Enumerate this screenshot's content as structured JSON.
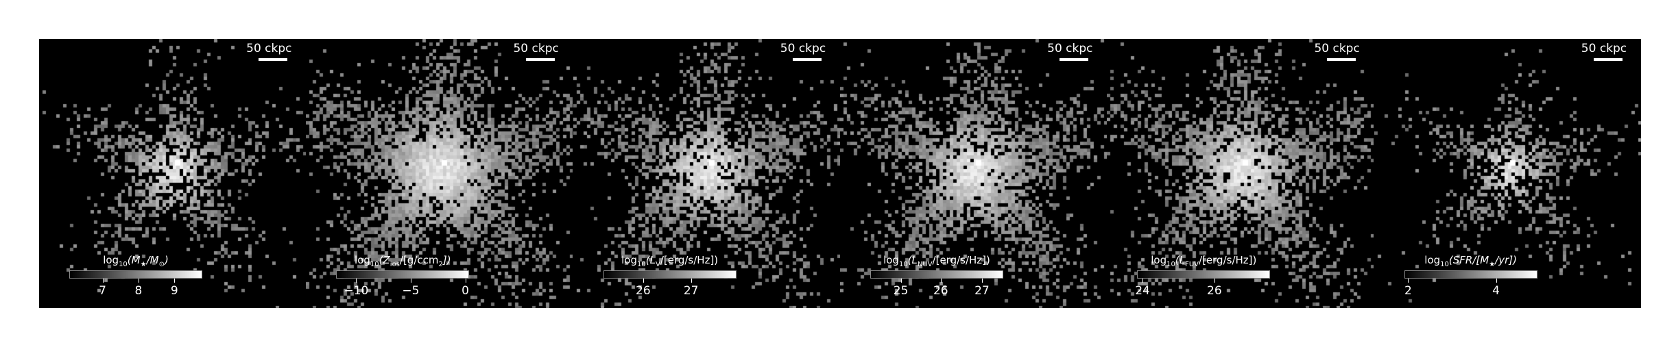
{
  "panels": [
    {
      "scalebar": "50 ckpc",
      "label_parts": [
        "log",
        "10",
        "(M",
        "★",
        "/M",
        "⊙",
        ")"
      ],
      "ticks": [
        {
          "value": "7",
          "pos": 0.25
        },
        {
          "value": "8",
          "pos": 0.52
        },
        {
          "value": "9",
          "pos": 0.79
        }
      ],
      "spread": 0.85,
      "density": 0.75,
      "center_bright": 1.0
    },
    {
      "scalebar": "50 ckpc",
      "label_parts": [
        "log",
        "10",
        "(Z",
        "ios",
        "/[g/ccm",
        "2",
        "])"
      ],
      "ticks": [
        {
          "value": "−10",
          "pos": 0.15
        },
        {
          "value": "−5",
          "pos": 0.56
        },
        {
          "value": "0",
          "pos": 0.97
        }
      ],
      "spread": 1.2,
      "density": 1.0,
      "center_bright": 0.9
    },
    {
      "scalebar": "50 ckpc",
      "label_parts": [
        "log",
        "10",
        "(L",
        "V",
        "/[erg/s/Hz])",
        "",
        ""
      ],
      "ticks": [
        {
          "value": "26",
          "pos": 0.3
        },
        {
          "value": "27",
          "pos": 0.66
        }
      ],
      "spread": 1.05,
      "density": 0.9,
      "center_bright": 1.0
    },
    {
      "scalebar": "50 ckpc",
      "label_parts": [
        "log",
        "10",
        "(L",
        "NUV",
        "/[erg/s/Hz])",
        "",
        ""
      ],
      "ticks": [
        {
          "value": "25",
          "pos": 0.23
        },
        {
          "value": "26",
          "pos": 0.53
        },
        {
          "value": "27",
          "pos": 0.84
        }
      ],
      "spread": 1.1,
      "density": 0.95,
      "center_bright": 1.0
    },
    {
      "scalebar": "50 ckpc",
      "label_parts": [
        "log",
        "10",
        "(L",
        "FUV",
        "/[erg/s/Hz])",
        "",
        ""
      ],
      "ticks": [
        {
          "value": "24",
          "pos": 0.04
        },
        {
          "value": "26",
          "pos": 0.58
        }
      ],
      "spread": 1.1,
      "density": 0.95,
      "center_bright": 1.0
    },
    {
      "scalebar": "50 ckpc",
      "label_parts": [
        "log",
        "10",
        "(SFR/[M",
        "★",
        "/yr])",
        "",
        ""
      ],
      "ticks": [
        {
          "value": "2",
          "pos": 0.03
        },
        {
          "value": "4",
          "pos": 0.69
        }
      ],
      "spread": 0.75,
      "density": 0.65,
      "center_bright": 1.0
    }
  ]
}
